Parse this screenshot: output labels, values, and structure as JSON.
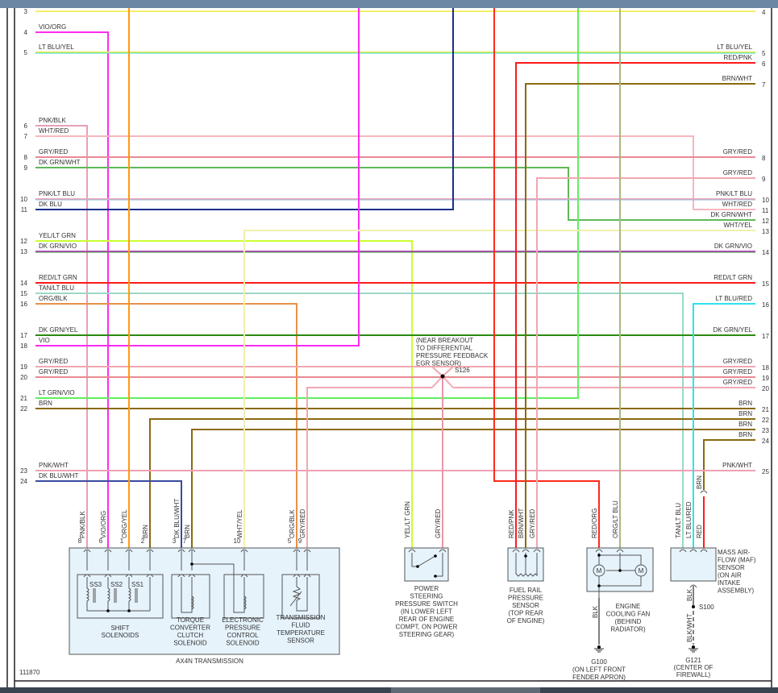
{
  "diagram_id": "111870",
  "wires": [
    {
      "id": "w3",
      "left_pin": "3",
      "right_pin": "4",
      "left_label": "",
      "right_label": "",
      "color": "#f2ee6a"
    },
    {
      "id": "w4",
      "left_pin": "4",
      "left_label": "VIO/ORG",
      "color": "#ff2bf0"
    },
    {
      "id": "w5",
      "left_pin": "5",
      "right_pin": "5",
      "left_label": "LT BLU/YEL",
      "right_label": "LT BLU/YEL",
      "color": "#e6ea3a",
      "stripe": "#39e0f0"
    },
    {
      "id": "w6",
      "left_pin": "6",
      "left_label": "PNK/BLK",
      "color": "#e8a0b4"
    },
    {
      "id": "w7",
      "left_pin": "7",
      "right_pin": "11",
      "left_label": "WHT/RED",
      "right_label": "WHT/RED",
      "color": "#f7b7be"
    },
    {
      "id": "w8",
      "left_pin": "8",
      "right_pin": "8",
      "left_label": "GRY/RED",
      "right_label": "GRY/RED",
      "color": "#e88a9a"
    },
    {
      "id": "w9",
      "left_pin": "9",
      "right_pin": "12",
      "left_label": "DK GRN/WHT",
      "right_label": "DK GRN/WHT",
      "color": "#5fb85a"
    },
    {
      "id": "w10",
      "left_pin": "10",
      "right_pin": "10",
      "left_label": "PNK/LT BLU",
      "right_label": "PNK/LT BLU",
      "color": "#f0a8b8",
      "stripe": "#8cb8e0"
    },
    {
      "id": "w11",
      "left_pin": "11",
      "left_label": "DK BLU",
      "color": "#1a2f8a"
    },
    {
      "id": "w12",
      "left_pin": "12",
      "left_label": "YEL/LT GRN",
      "color": "#c8ff30"
    },
    {
      "id": "w13",
      "left_pin": "13",
      "right_pin": "14",
      "left_label": "DK GRN/VIO",
      "right_label": "DK GRN/VIO",
      "color": "#c040c8",
      "stripe": "#3a9a3a"
    },
    {
      "id": "w14",
      "left_pin": "14",
      "right_pin": "15",
      "left_label": "RED/LT GRN",
      "right_label": "RED/LT GRN",
      "color": "#ff1a1a"
    },
    {
      "id": "w15",
      "left_pin": "15",
      "left_label": "TAN/LT BLU",
      "color": "#9ad8c8"
    },
    {
      "id": "w16",
      "left_pin": "16",
      "left_label": "ORG/BLK",
      "color": "#e8904a"
    },
    {
      "id": "w17",
      "left_pin": "17",
      "right_pin": "17",
      "left_label": "DK GRN/YEL",
      "right_label": "DK GRN/YEL",
      "color": "#2a8a10"
    },
    {
      "id": "w18",
      "left_pin": "18",
      "left_label": "VIO",
      "color": "#ff2bf0"
    },
    {
      "id": "w19",
      "left_pin": "19",
      "right_pin": "18",
      "left_label": "GRY/RED",
      "right_label": "GRY/RED",
      "color": "#f0a8b0"
    },
    {
      "id": "w20",
      "left_pin": "20",
      "right_pin": "19",
      "left_label": "GRY/RED",
      "right_label": "GRY/RED",
      "color": "#e88a90"
    },
    {
      "id": "w20r",
      "right_pin": "20",
      "right_label": "GRY/RED",
      "color": "#f0a8b0"
    },
    {
      "id": "w21",
      "left_pin": "21",
      "left_label": "LT GRN/VIO",
      "color": "#60f060"
    },
    {
      "id": "w22",
      "left_pin": "22",
      "right_pin": "21",
      "left_label": "BRN",
      "right_label": "BRN",
      "color": "#8a6a10"
    },
    {
      "id": "b22",
      "right_pin": "22",
      "right_label": "BRN",
      "color": "#8a6a10"
    },
    {
      "id": "b23",
      "right_pin": "23",
      "right_label": "BRN",
      "color": "#8a6a10"
    },
    {
      "id": "b24",
      "right_pin": "24",
      "right_label": "BRN",
      "color": "#8a6a10"
    },
    {
      "id": "w23",
      "left_pin": "23",
      "right_pin": "25",
      "left_label": "PNK/WHT",
      "right_label": "PNK/WHT",
      "color": "#f0a0b4"
    },
    {
      "id": "w24",
      "left_pin": "24",
      "left_label": "DK BLU/WHT",
      "color": "#3a4aa0"
    },
    {
      "id": "wy",
      "right_pin": "13",
      "right_label": "WHT/YEL",
      "color": "#f0f0b0"
    },
    {
      "id": "red",
      "color": "#ff2a1a"
    },
    {
      "id": "redpnk",
      "right_pin": "6",
      "right_label": "RED/PNK",
      "color": "#ff1a1a"
    },
    {
      "id": "brnwht",
      "right_pin": "7",
      "right_label": "BRN/WHT",
      "color": "#8a6a10"
    },
    {
      "id": "gry9",
      "right_pin": "9",
      "right_label": "GRY/RED",
      "color": "#f0a8b0"
    },
    {
      "id": "ltblured",
      "right_pin": "16",
      "right_label": "LT BLU/RED",
      "color": "#30e0f0"
    },
    {
      "id": "orgyel",
      "color": "#ff9a10"
    },
    {
      "id": "orgltblu",
      "color": "#f0b060",
      "stripe": "#60c0a0"
    },
    {
      "id": "s126w",
      "color": "#e898a8"
    },
    {
      "id": "redmaf",
      "color": "#ff1a1a"
    }
  ],
  "splice": {
    "name": "S126",
    "note": [
      "(NEAR BREAKOUT",
      "TO DIFFERENTIAL",
      "PRESSURE FEEDBACK",
      "EGR SENSOR)"
    ]
  },
  "connectors": [
    {
      "label": "PNK/BLK",
      "pin": "8",
      "color": "#f080b0"
    },
    {
      "label": "VIO/ORG",
      "pin": "6",
      "color": "#ff2bf0"
    },
    {
      "label": "ORG/YEL",
      "pin": "1",
      "color": "#ff9a10"
    },
    {
      "label": "BRN",
      "pin": "2",
      "color": "#8a6a10"
    },
    {
      "label": "DK BLU/WHT",
      "pin": "3",
      "color": "#7080c8"
    },
    {
      "label": "BRN",
      "pin": "7",
      "color": "#8a6a10"
    },
    {
      "label": "WHT/YEL",
      "pin": "10",
      "color": "#f0f0b0"
    },
    {
      "label": "ORG/BLK",
      "pin": "5",
      "color": "#e8904a"
    },
    {
      "label": "GRY/RED",
      "pin": "9",
      "color": "#f0a8b0"
    },
    {
      "label": "YEL/LT GRN",
      "pin": "",
      "color": "#c8ff30"
    },
    {
      "label": "GRY/RED",
      "pin": "",
      "color": "#f0a8b0"
    },
    {
      "label": "RED/PNK",
      "pin": "",
      "color": "#ff1a1a"
    },
    {
      "label": "BRN/WHT",
      "pin": "",
      "color": "#8a6a10"
    },
    {
      "label": "GRY/RED",
      "pin": "",
      "color": "#f0a8b0"
    },
    {
      "label": "RED/ORG",
      "pin": "",
      "color": "#ff3a1a"
    },
    {
      "label": "ORG/LT BLU",
      "pin": "",
      "color": "#f0b060"
    },
    {
      "label": "TAN/LT BLU",
      "pin": "",
      "color": "#9ad8c8"
    },
    {
      "label": "LT BLU/RED",
      "pin": "",
      "color": "#30e0f0"
    },
    {
      "label": "RED",
      "pin": "",
      "color": "#ff1a1a"
    }
  ],
  "maf_brn_label": "BRN",
  "components": {
    "transmission": {
      "title": "AX4N TRANSMISSION",
      "shift": {
        "label": [
          "SHIFT",
          "SOLENOIDS"
        ],
        "solenoids": [
          "SS3",
          "SS2",
          "SS1"
        ]
      },
      "tcc": [
        "TORQUE",
        "CONVERTER",
        "CLUTCH",
        "SOLENOID"
      ],
      "epc": [
        "ELECTRONIC",
        "PRESSURE",
        "CONTROL",
        "SOLENOID"
      ],
      "tft": [
        "TRANSMISSION",
        "FLUID",
        "TEMPERATURE",
        "SENSOR"
      ]
    },
    "ps_switch": [
      "POWER",
      "STEERING",
      "PRESSURE SWITCH",
      "(IN LOWER LEFT",
      "REAR OF ENGINE",
      "COMPT, ON POWER",
      "STEERING GEAR)"
    ],
    "fuel_rail": [
      "FUEL RAIL",
      "PRESSURE",
      "SENSOR",
      "(TOP REAR",
      "OF ENGINE)"
    ],
    "fan": {
      "label": [
        "ENGINE",
        "COOLING FAN",
        "(BEHIND",
        "RADIATOR)"
      ],
      "motor": "M",
      "ground_wire": "BLK",
      "ground": [
        "G100",
        "(ON LEFT FRONT",
        "FENDER APRON)"
      ]
    },
    "maf": {
      "label": [
        "MASS AIR-",
        "FLOW (MAF)",
        "SENSOR",
        "(ON AIR",
        "INTAKE",
        "ASSEMBLY)"
      ],
      "wire1": "BLK",
      "splice": "S100",
      "wire2": "BLK/WHT",
      "ground": [
        "G121",
        "(CENTER OF",
        "FIREWALL)"
      ]
    }
  }
}
